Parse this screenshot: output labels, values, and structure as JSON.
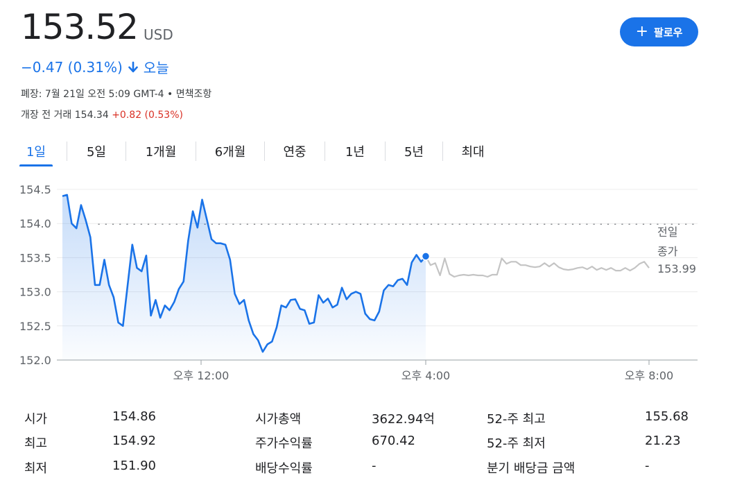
{
  "header": {
    "price": "153.52",
    "currency": "USD",
    "change": "−0.47 (0.31%)",
    "period": "오늘",
    "market_status": "폐장: 7월 21일 오전 5:09 GMT-4 • 면책조항",
    "premarket_label": "개장 전 거래 154.34",
    "premarket_change": "+0.82 (0.53%)",
    "follow_label": "팔로우"
  },
  "colors": {
    "accent": "#1a73e8",
    "negative_change": "#1a73e8",
    "positive_change": "#d93025",
    "after_hours_line": "#c4c4c4"
  },
  "tabs": [
    {
      "label": "1일",
      "active": true
    },
    {
      "label": "5일",
      "active": false
    },
    {
      "label": "1개월",
      "active": false
    },
    {
      "label": "6개월",
      "active": false
    },
    {
      "label": "연중",
      "active": false
    },
    {
      "label": "1년",
      "active": false
    },
    {
      "label": "5년",
      "active": false
    },
    {
      "label": "최대",
      "active": false
    }
  ],
  "chart_data": {
    "type": "line",
    "y_ticks": [
      "154.5",
      "154.0",
      "153.5",
      "153.0",
      "152.5",
      "152.0"
    ],
    "ylim": [
      152.0,
      154.5
    ],
    "x_ticks": [
      "오후 12:00",
      "오후 4:00",
      "오후 8:00"
    ],
    "previous_close": 153.99,
    "previous_close_label": [
      "전일",
      "종가",
      "153.99"
    ],
    "grid": true,
    "series": [
      {
        "values": [
          154.4,
          154.42,
          154.0,
          153.93,
          154.27,
          154.05,
          153.8,
          153.1,
          153.1,
          153.47,
          153.1,
          152.92,
          152.55,
          152.5,
          153.1,
          153.69,
          153.35,
          153.3,
          153.53,
          152.65,
          152.88,
          152.62,
          152.8,
          152.73,
          152.85,
          153.04,
          153.15,
          153.75,
          154.18,
          153.94,
          154.35,
          154.06,
          153.77,
          153.71,
          153.71,
          153.69,
          153.47,
          152.97,
          152.82,
          152.88,
          152.58,
          152.38,
          152.29,
          152.12,
          152.23,
          152.27,
          152.48,
          152.8,
          152.77,
          152.88,
          152.89,
          152.75,
          152.73,
          152.53,
          152.55,
          152.95,
          152.84,
          152.9,
          152.77,
          152.81,
          153.06,
          152.89,
          152.97,
          153.0,
          152.97,
          152.68,
          152.6,
          152.58,
          152.71,
          153.02,
          153.1,
          153.08,
          153.17,
          153.19,
          153.1,
          153.43,
          153.54,
          153.44,
          153.52
        ]
      },
      {
        "values": [
          153.52,
          153.39,
          153.42,
          153.24,
          153.49,
          153.26,
          153.22,
          153.24,
          153.25,
          153.24,
          153.25,
          153.24,
          153.24,
          153.22,
          153.25,
          153.25,
          153.49,
          153.41,
          153.44,
          153.44,
          153.39,
          153.39,
          153.37,
          153.36,
          153.37,
          153.42,
          153.37,
          153.42,
          153.36,
          153.33,
          153.32,
          153.33,
          153.35,
          153.36,
          153.33,
          153.37,
          153.32,
          153.35,
          153.32,
          153.35,
          153.31,
          153.31,
          153.35,
          153.31,
          153.35,
          153.41,
          153.44,
          153.35
        ]
      }
    ]
  },
  "stats": [
    [
      {
        "label": "시가",
        "value": "154.86"
      },
      {
        "label": "시가총액",
        "value": "3622.94억"
      },
      {
        "label": "52-주 최고",
        "value": "155.68"
      }
    ],
    [
      {
        "label": "최고",
        "value": "154.92"
      },
      {
        "label": "주가수익률",
        "value": "670.42"
      },
      {
        "label": "52-주 최저",
        "value": "21.23"
      }
    ],
    [
      {
        "label": "최저",
        "value": "151.90"
      },
      {
        "label": "배당수익률",
        "value": "-"
      },
      {
        "label": "분기 배당금 금액",
        "value": "-"
      }
    ]
  ]
}
